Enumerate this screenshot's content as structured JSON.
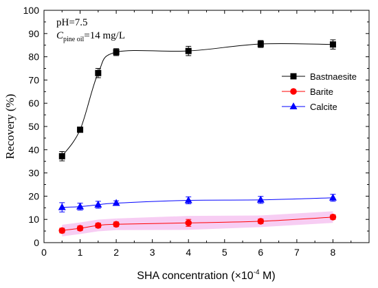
{
  "chart_data": {
    "type": "line",
    "ylabel": "Recovery (%)",
    "xlabel_prefix": "SHA concentration (",
    "xlabel_multiplier": "×10",
    "xlabel_exponent": "-4",
    "xlabel_unit": " M)",
    "xlim": [
      0,
      9
    ],
    "ylim": [
      0,
      100
    ],
    "x_ticks": [
      0,
      1,
      2,
      3,
      4,
      5,
      6,
      7,
      8
    ],
    "y_ticks": [
      0,
      10,
      20,
      30,
      40,
      50,
      60,
      70,
      80,
      90,
      100
    ],
    "grid": false,
    "legend_position": "top-right",
    "annotations": {
      "ph": "pH=7.5",
      "c_symbol": "C",
      "c_subscript": "pine oil",
      "c_value": "=14 mg/L"
    },
    "series": [
      {
        "name": "Bastnaesite",
        "marker": "square",
        "color": "#000000",
        "x": [
          0.5,
          1,
          1.5,
          2,
          4,
          6,
          8
        ],
        "y": [
          37.2,
          48.6,
          73.0,
          82.0,
          82.5,
          85.5,
          85.3
        ],
        "err": [
          2.0,
          1.0,
          2.0,
          1.5,
          2.0,
          1.5,
          2.0
        ]
      },
      {
        "name": "Barite",
        "marker": "circle",
        "color": "#ff0000",
        "x": [
          0.5,
          1,
          1.5,
          2,
          4,
          6,
          8
        ],
        "y": [
          5.2,
          6.2,
          7.4,
          7.9,
          8.5,
          9.2,
          11.0
        ],
        "err": [
          1.0,
          1.0,
          1.0,
          1.0,
          1.5,
          1.0,
          1.0
        ]
      },
      {
        "name": "Calcite",
        "marker": "triangle",
        "color": "#0000ff",
        "x": [
          0.5,
          1,
          1.5,
          2,
          4,
          6,
          8
        ],
        "y": [
          15.2,
          15.5,
          16.3,
          17.0,
          18.2,
          18.4,
          19.3
        ],
        "err": [
          2.0,
          1.5,
          1.5,
          1.0,
          1.5,
          1.5,
          1.5
        ]
      }
    ]
  }
}
